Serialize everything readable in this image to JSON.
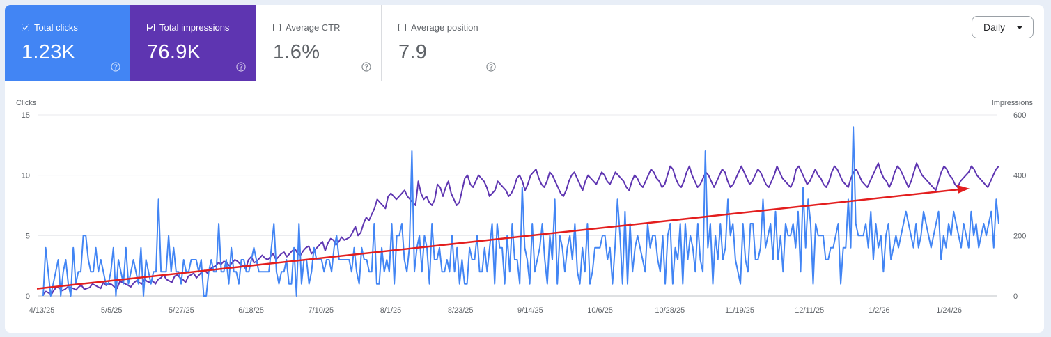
{
  "colors": {
    "clicks": "#4285f4",
    "impressions": "#5e35b1",
    "trend": "#e31e1e",
    "grid": "#e8eaed",
    "axis_text": "#5f6368"
  },
  "metrics": [
    {
      "label": "Total clicks",
      "value": "1.23K",
      "checked": true
    },
    {
      "label": "Total impressions",
      "value": "76.9K",
      "checked": true
    },
    {
      "label": "Average CTR",
      "value": "1.6%",
      "checked": false
    },
    {
      "label": "Average position",
      "value": "7.9",
      "checked": false
    }
  ],
  "granularity": {
    "label": "Daily",
    "icon": "caret-down-icon"
  },
  "help_icon": "question-circle-icon",
  "chart_data": {
    "type": "line",
    "left_axis_label": "Clicks",
    "right_axis_label": "Impressions",
    "ylim_left": [
      0,
      15
    ],
    "ylim_right": [
      0,
      600
    ],
    "left_ticks": [
      "15",
      "10",
      "5",
      "0"
    ],
    "right_ticks": [
      "600",
      "400",
      "200",
      "0"
    ],
    "x_ticks": [
      "4/13/25",
      "5/5/25",
      "5/27/25",
      "6/18/25",
      "7/10/25",
      "8/1/25",
      "8/23/25",
      "9/14/25",
      "10/6/25",
      "10/28/25",
      "11/19/25",
      "12/11/25",
      "1/2/26",
      "1/24/26"
    ],
    "series": [
      {
        "name": "Clicks",
        "axis": "left",
        "values": [
          0,
          4,
          2,
          0,
          1,
          2,
          3,
          0,
          2,
          3,
          1,
          0,
          4,
          1,
          2,
          2,
          5,
          5,
          3,
          2,
          2,
          4,
          2,
          3,
          2,
          1,
          1,
          2,
          4,
          0,
          3,
          2,
          1,
          4,
          1,
          2,
          3,
          2,
          1,
          4,
          0,
          3,
          2,
          1,
          2,
          2,
          8,
          2,
          2,
          2,
          5,
          2,
          4,
          2,
          2,
          1,
          3,
          2,
          2,
          3,
          3,
          3,
          2,
          3,
          0,
          0,
          2,
          3,
          2,
          2,
          6,
          2,
          2,
          3,
          1,
          4,
          2,
          2,
          1,
          3,
          3,
          2,
          2,
          3,
          4,
          3,
          2,
          2,
          2,
          2,
          2,
          4,
          6,
          2,
          1,
          2,
          2,
          3,
          1,
          1,
          4,
          0,
          6,
          1,
          3,
          3,
          1,
          2,
          4,
          3,
          3,
          3,
          2,
          3,
          3,
          2,
          4,
          5,
          3,
          3,
          3,
          3,
          3,
          2,
          4,
          2,
          1,
          4,
          3,
          3,
          2,
          2,
          6,
          1,
          1,
          4,
          2,
          3,
          2,
          6,
          1,
          5,
          5,
          6,
          3,
          2,
          4,
          12,
          2,
          4,
          5,
          2,
          5,
          4,
          1,
          6,
          3,
          3,
          4,
          2,
          2,
          3,
          2,
          5,
          2,
          4,
          1,
          3,
          1,
          1,
          4,
          3,
          3,
          5,
          2,
          2,
          4,
          2,
          4,
          6,
          1,
          6,
          4,
          4,
          1,
          5,
          2,
          6,
          3,
          3,
          1,
          9,
          4,
          3,
          1,
          6,
          2,
          3,
          4,
          6,
          3,
          1,
          5,
          3,
          8,
          1,
          5,
          4,
          2,
          4,
          5,
          3,
          6,
          2,
          1,
          4,
          2,
          6,
          1,
          2,
          4,
          4,
          4,
          5,
          5,
          3,
          4,
          1,
          4,
          8,
          5,
          1,
          7,
          1,
          6,
          2,
          4,
          5,
          4,
          3,
          2,
          6,
          4,
          5,
          5,
          3,
          2,
          5,
          1,
          5,
          6,
          1,
          4,
          3,
          6,
          1,
          6,
          3,
          5,
          4,
          2,
          6,
          3,
          2,
          12,
          4,
          6,
          1,
          5,
          3,
          6,
          3,
          4,
          8,
          5,
          6,
          3,
          2,
          1,
          6,
          3,
          2,
          6,
          6,
          3,
          3,
          4,
          8,
          4,
          5,
          6,
          3,
          7,
          3,
          5,
          2,
          6,
          5,
          5,
          6,
          4,
          7,
          2,
          9,
          4,
          8,
          6,
          1,
          6,
          5,
          5,
          5,
          3,
          3,
          4,
          4,
          5,
          6,
          1,
          4,
          4,
          8,
          4,
          14,
          6,
          5,
          5,
          5,
          6,
          4,
          7,
          3,
          6,
          4,
          5,
          2,
          5,
          6,
          3,
          4,
          5,
          4,
          5,
          6,
          7,
          6,
          5,
          4,
          6,
          4,
          5,
          7,
          6,
          5,
          4,
          5,
          6,
          7,
          3,
          5,
          4,
          6,
          5,
          7,
          6,
          5,
          4,
          6,
          5,
          4,
          7,
          5,
          6,
          4,
          5,
          6,
          5,
          6,
          7,
          4,
          8,
          6
        ],
        "color_key": "clicks"
      },
      {
        "name": "Impressions",
        "axis": "right",
        "values": [
          5,
          15,
          10,
          5,
          20,
          30,
          25,
          18,
          22,
          30,
          28,
          25,
          20,
          30,
          35,
          22,
          25,
          28,
          40,
          35,
          30,
          25,
          45,
          35,
          40,
          38,
          30,
          25,
          48,
          45,
          40,
          35,
          30,
          42,
          50,
          45,
          40,
          55,
          48,
          45,
          50,
          40,
          55,
          60,
          70,
          55,
          50,
          45,
          65,
          70,
          60,
          55,
          45,
          65,
          70,
          75,
          60,
          70,
          80,
          85,
          75,
          90,
          95,
          100,
          110,
          105,
          115,
          110,
          100,
          110,
          120,
          115,
          105,
          100,
          90,
          120,
          130,
          110,
          115,
          125,
          135,
          125,
          120,
          130,
          140,
          120,
          130,
          140,
          145,
          130,
          140,
          150,
          155,
          140,
          135,
          150,
          160,
          165,
          140,
          150,
          160,
          170,
          180,
          150,
          175,
          190,
          185,
          170,
          180,
          195,
          185,
          190,
          195,
          210,
          230,
          200,
          210,
          240,
          260,
          250,
          270,
          290,
          320,
          310,
          300,
          290,
          330,
          340,
          330,
          320,
          330,
          340,
          350,
          330,
          320,
          310,
          300,
          380,
          340,
          320,
          330,
          310,
          300,
          320,
          370,
          360,
          330,
          360,
          380,
          340,
          320,
          300,
          310,
          350,
          390,
          400,
          370,
          360,
          380,
          400,
          390,
          380,
          360,
          330,
          340,
          350,
          380,
          370,
          360,
          350,
          330,
          340,
          360,
          390,
          400,
          380,
          350,
          370,
          400,
          410,
          420,
          390,
          370,
          360,
          380,
          410,
          400,
          380,
          360,
          340,
          330,
          350,
          380,
          400,
          410,
          390,
          370,
          350,
          380,
          400,
          390,
          380,
          370,
          390,
          410,
          400,
          380,
          370,
          390,
          410,
          400,
          390,
          380,
          360,
          350,
          380,
          400,
          390,
          370,
          360,
          380,
          400,
          420,
          410,
          390,
          380,
          360,
          370,
          400,
          430,
          420,
          390,
          370,
          360,
          380,
          410,
          430,
          400,
          380,
          360,
          370,
          390,
          410,
          400,
          380,
          360,
          380,
          400,
          420,
          410,
          380,
          360,
          370,
          390,
          410,
          430,
          410,
          390,
          370,
          380,
          400,
          420,
          410,
          390,
          370,
          360,
          380,
          400,
          430,
          410,
          390,
          380,
          370,
          360,
          380,
          420,
          430,
          410,
          390,
          370,
          380,
          400,
          420,
          400,
          390,
          370,
          360,
          380,
          410,
          430,
          420,
          400,
          380,
          370,
          360,
          390,
          410,
          420,
          400,
          380,
          370,
          360,
          380,
          400,
          420,
          440,
          410,
          390,
          380,
          360,
          380,
          410,
          430,
          420,
          400,
          380,
          360,
          380,
          410,
          440,
          420,
          400,
          390,
          380,
          370,
          360,
          350,
          380,
          410,
          430,
          420,
          400,
          390,
          370,
          360,
          380,
          390,
          400,
          410,
          430,
          420,
          400,
          390,
          380,
          370,
          360,
          380,
          400,
          420,
          430
        ],
        "color_key": "impressions"
      },
      {
        "name": "Trend",
        "axis": "left",
        "values": [
          0.6,
          8.9
        ],
        "color_key": "trend"
      }
    ]
  }
}
